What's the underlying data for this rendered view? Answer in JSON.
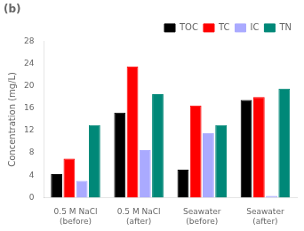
{
  "chart_data": {
    "type": "bar",
    "title": "(b)",
    "categories": [
      "0.5 M NaCl\n(before)",
      "0.5 M NaCl\n(after)",
      "Seawater\n(before)",
      "Seawater\n(after)"
    ],
    "series": [
      {
        "name": "TOC",
        "color": "#000000",
        "values": [
          4.2,
          15.2,
          5.0,
          17.5
        ]
      },
      {
        "name": "TC",
        "color": "#ff0000",
        "values": [
          7.0,
          23.5,
          16.5,
          18.0
        ]
      },
      {
        "name": "IC",
        "color": "#aaaaff",
        "values": [
          3.0,
          8.5,
          11.5,
          0.3
        ]
      },
      {
        "name": "TN",
        "color": "#008878",
        "values": [
          13.0,
          18.5,
          13.0,
          19.5
        ]
      }
    ],
    "ylabel": "Concentration (mg/L)",
    "ylim": [
      0,
      28
    ],
    "yticks": [
      0,
      4,
      8,
      12,
      16,
      20,
      24,
      28
    ],
    "grid": false,
    "legend": "upper right"
  }
}
